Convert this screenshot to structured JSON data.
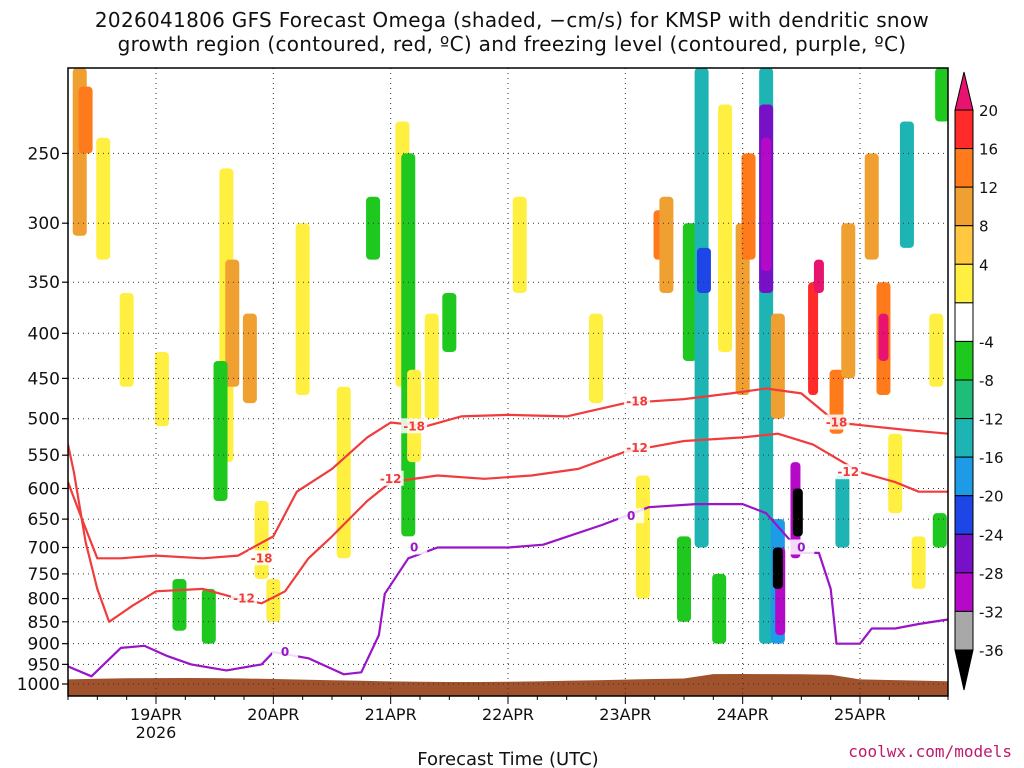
{
  "chart_data": {
    "type": "heatmap",
    "title_line1": "2026041806 GFS Forecast Omega (shaded, −cm/s) for KMSP with dendritic snow",
    "title_line2": "growth region (contoured, red, ºC) and freezing level (contoured, purple, ºC)",
    "xlabel": "Forecast Time (UTC)",
    "ylabel": "",
    "x_ticks": [
      {
        "label": "19APR",
        "day": 1
      },
      {
        "label": "20APR",
        "day": 2
      },
      {
        "label": "21APR",
        "day": 3
      },
      {
        "label": "22APR",
        "day": 4
      },
      {
        "label": "23APR",
        "day": 5
      },
      {
        "label": "24APR",
        "day": 6
      },
      {
        "label": "25APR",
        "day": 7
      }
    ],
    "x_year_label": "2026",
    "xlim": [
      0.25,
      7.75
    ],
    "y_ticks": [
      250,
      300,
      350,
      400,
      450,
      500,
      550,
      600,
      650,
      700,
      750,
      800,
      850,
      900,
      950,
      1000
    ],
    "ylim": [
      200,
      1000
    ],
    "y_scale": "log-pressure",
    "colorbar_labels": [
      "20",
      "16",
      "12",
      "8",
      "4",
      "-4",
      "-8",
      "-12",
      "-16",
      "-20",
      "-24",
      "-28",
      "-32",
      "-36"
    ],
    "colorbar_colors": [
      "#e8136f",
      "#ff2a2a",
      "#ff7a1a",
      "#f0a030",
      "#ffc840",
      "#ffef40",
      "#ffffff",
      "#1ec81e",
      "#1ebe78",
      "#1eb4b4",
      "#1e9be6",
      "#1e46e6",
      "#7810c8",
      "#b40ac8",
      "#a8a8a8",
      "#000000"
    ],
    "omega_cells": [
      {
        "day": 0.35,
        "p0": 200,
        "p1": 310,
        "val": 8
      },
      {
        "day": 0.4,
        "p0": 210,
        "p1": 250,
        "val": 12
      },
      {
        "day": 0.55,
        "p0": 240,
        "p1": 330,
        "val": 4
      },
      {
        "day": 0.75,
        "p0": 360,
        "p1": 460,
        "val": 4
      },
      {
        "day": 1.05,
        "p0": 420,
        "p1": 510,
        "val": 4
      },
      {
        "day": 1.2,
        "p0": 760,
        "p1": 870,
        "val": -8
      },
      {
        "day": 1.45,
        "p0": 780,
        "p1": 900,
        "val": -8
      },
      {
        "day": 1.6,
        "p0": 260,
        "p1": 560,
        "val": 4
      },
      {
        "day": 1.65,
        "p0": 330,
        "p1": 460,
        "val": 8
      },
      {
        "day": 1.8,
        "p0": 380,
        "p1": 480,
        "val": 8
      },
      {
        "day": 1.55,
        "p0": 430,
        "p1": 620,
        "val": -8
      },
      {
        "day": 1.9,
        "p0": 620,
        "p1": 760,
        "val": 4
      },
      {
        "day": 2.0,
        "p0": 760,
        "p1": 850,
        "val": 4
      },
      {
        "day": 2.25,
        "p0": 300,
        "p1": 470,
        "val": 4
      },
      {
        "day": 2.6,
        "p0": 460,
        "p1": 720,
        "val": 4
      },
      {
        "day": 2.85,
        "p0": 280,
        "p1": 330,
        "val": -8
      },
      {
        "day": 3.1,
        "p0": 230,
        "p1": 460,
        "val": 4
      },
      {
        "day": 3.15,
        "p0": 250,
        "p1": 680,
        "val": -8
      },
      {
        "day": 3.2,
        "p0": 440,
        "p1": 560,
        "val": 4
      },
      {
        "day": 3.35,
        "p0": 380,
        "p1": 500,
        "val": 4
      },
      {
        "day": 3.5,
        "p0": 360,
        "p1": 420,
        "val": -8
      },
      {
        "day": 4.1,
        "p0": 280,
        "p1": 360,
        "val": 4
      },
      {
        "day": 4.75,
        "p0": 380,
        "p1": 480,
        "val": 4
      },
      {
        "day": 5.15,
        "p0": 580,
        "p1": 800,
        "val": 4
      },
      {
        "day": 5.3,
        "p0": 290,
        "p1": 330,
        "val": 12
      },
      {
        "day": 5.35,
        "p0": 280,
        "p1": 360,
        "val": 8
      },
      {
        "day": 5.5,
        "p0": 680,
        "p1": 850,
        "val": -8
      },
      {
        "day": 5.55,
        "p0": 300,
        "p1": 430,
        "val": -8
      },
      {
        "day": 5.65,
        "p0": 200,
        "p1": 700,
        "val": -12
      },
      {
        "day": 5.67,
        "p0": 320,
        "p1": 360,
        "val": -20
      },
      {
        "day": 5.85,
        "p0": 220,
        "p1": 420,
        "val": 4
      },
      {
        "day": 5.8,
        "p0": 750,
        "p1": 900,
        "val": -8
      },
      {
        "day": 6.0,
        "p0": 300,
        "p1": 470,
        "val": 8
      },
      {
        "day": 6.05,
        "p0": 250,
        "p1": 330,
        "val": 12
      },
      {
        "day": 6.2,
        "p0": 200,
        "p1": 900,
        "val": -12
      },
      {
        "day": 6.2,
        "p0": 220,
        "p1": 360,
        "val": -24
      },
      {
        "day": 6.2,
        "p0": 240,
        "p1": 340,
        "val": -28
      },
      {
        "day": 6.3,
        "p0": 380,
        "p1": 500,
        "val": 8
      },
      {
        "day": 6.3,
        "p0": 650,
        "p1": 900,
        "val": -16
      },
      {
        "day": 6.32,
        "p0": 700,
        "p1": 880,
        "val": -28
      },
      {
        "day": 6.3,
        "p0": 700,
        "p1": 780,
        "val": -36
      },
      {
        "day": 6.45,
        "p0": 560,
        "p1": 720,
        "val": -28
      },
      {
        "day": 6.47,
        "p0": 600,
        "p1": 680,
        "val": -36
      },
      {
        "day": 6.6,
        "p0": 350,
        "p1": 470,
        "val": 16
      },
      {
        "day": 6.65,
        "p0": 330,
        "p1": 360,
        "val": 20
      },
      {
        "day": 6.8,
        "p0": 440,
        "p1": 520,
        "val": 12
      },
      {
        "day": 6.9,
        "p0": 300,
        "p1": 450,
        "val": 8
      },
      {
        "day": 6.85,
        "p0": 580,
        "p1": 700,
        "val": -12
      },
      {
        "day": 7.2,
        "p0": 350,
        "p1": 470,
        "val": 12
      },
      {
        "day": 7.2,
        "p0": 380,
        "p1": 430,
        "val": 20
      },
      {
        "day": 7.1,
        "p0": 250,
        "p1": 330,
        "val": 8
      },
      {
        "day": 7.4,
        "p0": 230,
        "p1": 320,
        "val": -12
      },
      {
        "day": 7.3,
        "p0": 520,
        "p1": 640,
        "val": 4
      },
      {
        "day": 7.5,
        "p0": 680,
        "p1": 780,
        "val": 4
      },
      {
        "day": 7.65,
        "p0": 380,
        "p1": 460,
        "val": 4
      },
      {
        "day": 7.68,
        "p0": 640,
        "p1": 700,
        "val": -8
      },
      {
        "day": 7.7,
        "p0": 200,
        "p1": 230,
        "val": -8
      }
    ],
    "contours": [
      {
        "name": "dgz-minus-18",
        "label": "-18",
        "color": "#f03c3c",
        "points": [
          [
            0.25,
            590
          ],
          [
            0.35,
            640
          ],
          [
            0.5,
            720
          ],
          [
            0.7,
            720
          ],
          [
            1.0,
            715
          ],
          [
            1.4,
            720
          ],
          [
            1.7,
            715
          ],
          [
            2.0,
            680
          ],
          [
            2.2,
            605
          ],
          [
            2.5,
            570
          ],
          [
            2.8,
            525
          ],
          [
            3.0,
            505
          ],
          [
            3.3,
            510
          ],
          [
            3.6,
            497
          ],
          [
            4.0,
            495
          ],
          [
            4.5,
            497
          ],
          [
            5.0,
            480
          ],
          [
            5.5,
            475
          ],
          [
            5.9,
            468
          ],
          [
            6.2,
            462
          ],
          [
            6.5,
            468
          ],
          [
            6.8,
            505
          ],
          [
            7.1,
            510
          ],
          [
            7.4,
            515
          ],
          [
            7.75,
            520
          ]
        ],
        "labels_at": [
          [
            1.9,
            720
          ],
          [
            3.2,
            510
          ],
          [
            5.1,
            478
          ],
          [
            6.8,
            505
          ]
        ]
      },
      {
        "name": "dgz-minus-12",
        "label": "-12",
        "color": "#f03c3c",
        "points": [
          [
            0.25,
            535
          ],
          [
            0.3,
            575
          ],
          [
            0.4,
            690
          ],
          [
            0.5,
            780
          ],
          [
            0.6,
            850
          ],
          [
            0.8,
            815
          ],
          [
            1.0,
            785
          ],
          [
            1.4,
            780
          ],
          [
            1.7,
            800
          ],
          [
            1.9,
            810
          ],
          [
            2.1,
            785
          ],
          [
            2.3,
            720
          ],
          [
            2.5,
            680
          ],
          [
            2.8,
            620
          ],
          [
            3.0,
            590
          ],
          [
            3.4,
            580
          ],
          [
            3.8,
            585
          ],
          [
            4.2,
            580
          ],
          [
            4.6,
            570
          ],
          [
            5.0,
            545
          ],
          [
            5.5,
            530
          ],
          [
            6.0,
            525
          ],
          [
            6.3,
            520
          ],
          [
            6.6,
            535
          ],
          [
            7.0,
            575
          ],
          [
            7.3,
            590
          ],
          [
            7.5,
            605
          ],
          [
            7.75,
            605
          ]
        ],
        "labels_at": [
          [
            1.75,
            800
          ],
          [
            3.0,
            585
          ],
          [
            5.1,
            540
          ],
          [
            6.9,
            575
          ]
        ]
      },
      {
        "name": "freezing-level",
        "label": "0",
        "color": "#9a14c8",
        "points": [
          [
            0.25,
            955
          ],
          [
            0.45,
            980
          ],
          [
            0.7,
            910
          ],
          [
            0.9,
            905
          ],
          [
            1.1,
            930
          ],
          [
            1.3,
            950
          ],
          [
            1.6,
            965
          ],
          [
            1.9,
            950
          ],
          [
            2.0,
            920
          ],
          [
            2.3,
            935
          ],
          [
            2.6,
            975
          ],
          [
            2.75,
            970
          ],
          [
            2.9,
            880
          ],
          [
            2.95,
            790
          ],
          [
            3.15,
            720
          ],
          [
            3.4,
            700
          ],
          [
            4.0,
            700
          ],
          [
            4.3,
            695
          ],
          [
            4.8,
            660
          ],
          [
            5.2,
            630
          ],
          [
            5.6,
            625
          ],
          [
            6.0,
            625
          ],
          [
            6.2,
            640
          ],
          [
            6.5,
            710
          ],
          [
            6.65,
            710
          ],
          [
            6.75,
            780
          ],
          [
            6.8,
            900
          ],
          [
            7.0,
            900
          ],
          [
            7.1,
            865
          ],
          [
            7.3,
            865
          ],
          [
            7.5,
            855
          ],
          [
            7.75,
            845
          ]
        ],
        "labels_at": [
          [
            2.1,
            920
          ],
          [
            3.2,
            700
          ],
          [
            5.05,
            645
          ],
          [
            6.5,
            700
          ]
        ]
      }
    ],
    "credit": "coolwx.com/models"
  }
}
